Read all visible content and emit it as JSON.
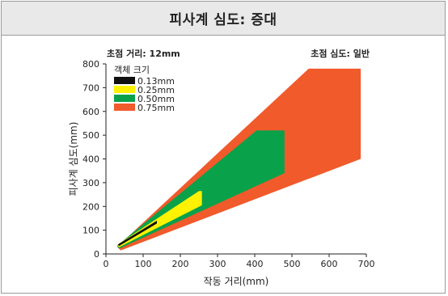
{
  "header": {
    "title": "피사계 심도: 증대"
  },
  "chart_data": {
    "type": "area",
    "title": "피사계 심도: 증대",
    "xlabel": "작동 거리(mm)",
    "ylabel": "피사계 심도(mm)",
    "xlim": [
      0,
      700
    ],
    "ylim": [
      0,
      800
    ],
    "xticks": [
      0,
      100,
      200,
      300,
      400,
      500,
      600,
      700
    ],
    "yticks": [
      0,
      100,
      200,
      300,
      400,
      500,
      600,
      700,
      800
    ],
    "annotations": {
      "focal_length": "초점 거리: 12mm",
      "focus_depth": "초점 심도: 일반"
    },
    "legend": {
      "title": "객체 크기",
      "position": "top-left"
    },
    "series": [
      {
        "name": "0.75mm",
        "color": "#f15a2b",
        "polygon": [
          [
            30,
            30
          ],
          [
            545,
            780
          ],
          [
            685,
            780
          ],
          [
            685,
            400
          ],
          [
            40,
            15
          ]
        ]
      },
      {
        "name": "0.50mm",
        "color": "#0aa14b",
        "polygon": [
          [
            30,
            35
          ],
          [
            405,
            520
          ],
          [
            480,
            520
          ],
          [
            480,
            340
          ],
          [
            35,
            22
          ]
        ]
      },
      {
        "name": "0.25mm",
        "color": "#fff200",
        "polygon": [
          [
            30,
            38
          ],
          [
            250,
            265
          ],
          [
            258,
            265
          ],
          [
            258,
            205
          ],
          [
            35,
            28
          ]
        ]
      },
      {
        "name": "0.13mm",
        "color": "#111111",
        "polygon": [
          [
            32,
            40
          ],
          [
            137,
            140
          ],
          [
            137,
            128
          ],
          [
            35,
            33
          ]
        ]
      }
    ]
  }
}
